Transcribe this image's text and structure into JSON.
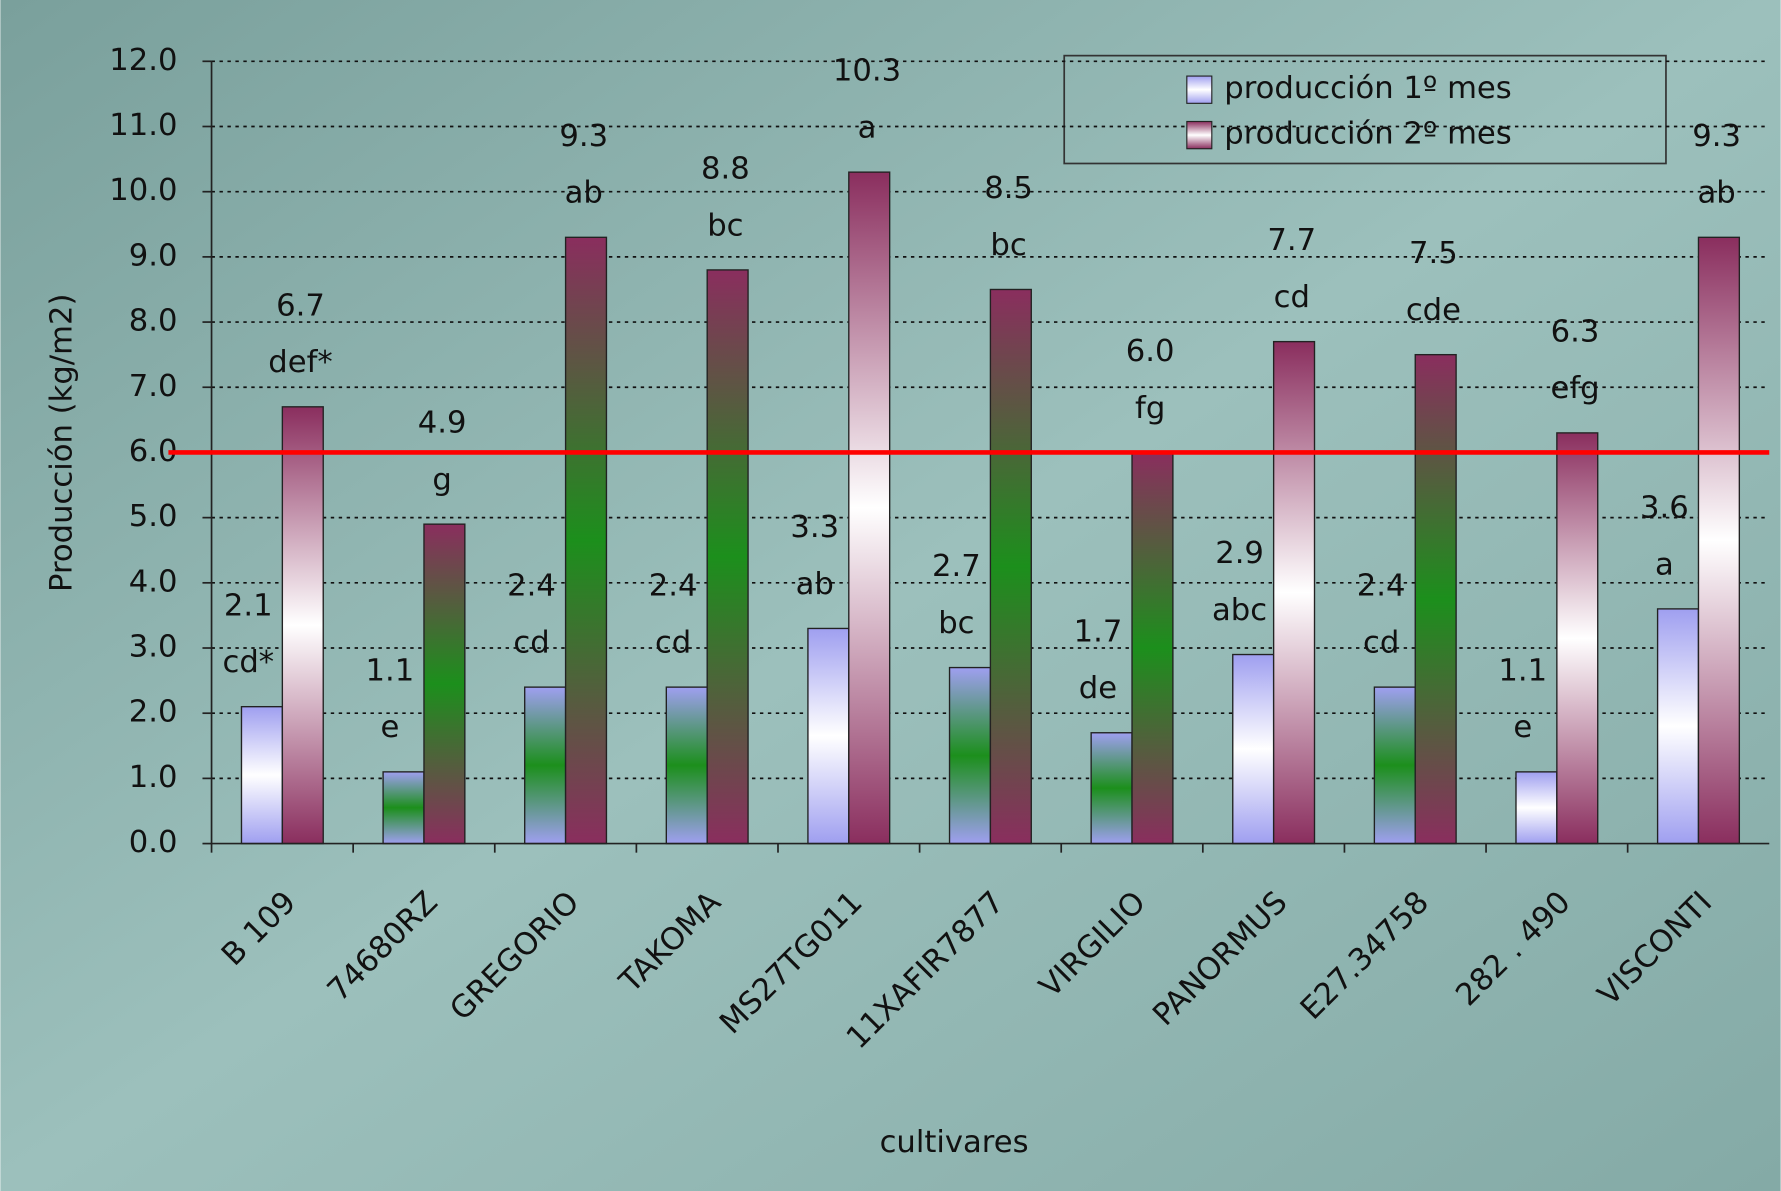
{
  "chart_data": {
    "type": "bar",
    "x_label": "cultivares",
    "y_label": "Producción (kg/m2)",
    "categories": [
      "B 109",
      "74680RZ",
      "GREGORIO",
      "TAKOMA",
      "MS27TG011",
      "11XAFIR7877",
      "VIRGILIO",
      "PANORMUS",
      "E27.34758",
      "282 . 490",
      "VISCONTI"
    ],
    "series": [
      {
        "name": "producción 1º mes",
        "color": "#9f9ff0",
        "values": [
          2.1,
          1.1,
          2.4,
          2.4,
          3.3,
          2.7,
          1.7,
          2.9,
          2.4,
          1.1,
          3.6
        ],
        "value_labels": [
          "2.1",
          "1.1",
          "2.4",
          "2.4",
          "3.3",
          "2.7",
          "1.7",
          "2.9",
          "2.4",
          "1.1",
          "3.6"
        ],
        "letters": [
          "cd*",
          "e",
          "cd",
          "cd",
          "ab",
          "bc",
          "de",
          "abc",
          "cd",
          "e",
          "a"
        ],
        "center_colors": [
          "#ffffff",
          "#1c8f1c",
          "#1c8f1c",
          "#1c8f1c",
          "#ffffff",
          "#1c8f1c",
          "#1c8f1c",
          "#ffffff",
          "#1c8f1c",
          "#ffffff",
          "#ffffff"
        ]
      },
      {
        "name": "producción 2º mes",
        "color": "#8a2e5e",
        "values": [
          6.7,
          4.9,
          9.3,
          8.8,
          10.3,
          8.5,
          6.0,
          7.7,
          7.5,
          6.3,
          9.3
        ],
        "value_labels": [
          "6.7",
          "4.9",
          "9.3",
          "8.8",
          "10.3",
          "8.5",
          "6.0",
          "7.7",
          "7.5",
          "6.3",
          "9.3"
        ],
        "letters": [
          "def*",
          "g",
          "ab",
          "bc",
          "a",
          "bc",
          "fg",
          "cd",
          "cde",
          "efg",
          "ab"
        ],
        "center_colors": [
          "#ffffff",
          "#1c8f1c",
          "#1c8f1c",
          "#1c8f1c",
          "#ffffff",
          "#1c8f1c",
          "#1c8f1c",
          "#ffffff",
          "#1c8f1c",
          "#ffffff",
          "#ffffff"
        ]
      }
    ],
    "ylim": [
      0,
      12
    ],
    "yticks": [
      {
        "value": 0,
        "label": "0.0"
      },
      {
        "value": 1,
        "label": "1.0"
      },
      {
        "value": 2,
        "label": "2.0"
      },
      {
        "value": 3,
        "label": "3.0"
      },
      {
        "value": 4,
        "label": "4.0"
      },
      {
        "value": 5,
        "label": "5.0"
      },
      {
        "value": 6,
        "label": "6.0"
      },
      {
        "value": 7,
        "label": "7.0"
      },
      {
        "value": 8,
        "label": "8.0"
      },
      {
        "value": 9,
        "label": "9.0"
      },
      {
        "value": 10,
        "label": "10.0"
      },
      {
        "value": 11,
        "label": "11.0"
      },
      {
        "value": 12,
        "label": "12.0"
      }
    ],
    "grid": true,
    "legend": "upper right",
    "reference_line": {
      "value": 6,
      "color": "#ff0000"
    }
  }
}
